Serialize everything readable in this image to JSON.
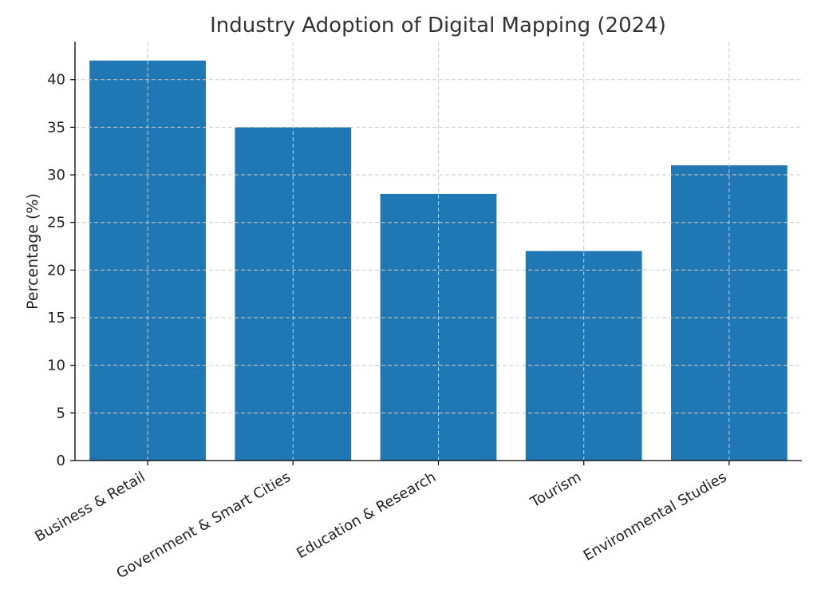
{
  "chart_data": {
    "type": "bar",
    "title": "Industry Adoption of Digital Mapping (2024)",
    "xlabel": "",
    "ylabel": "Percentage (%)",
    "categories": [
      "Business & Retail",
      "Government & Smart Cities",
      "Education & Research",
      "Tourism",
      "Environmental Studies"
    ],
    "values": [
      42,
      35,
      28,
      22,
      31
    ],
    "ylim": [
      0,
      44
    ],
    "yticks": [
      0,
      5,
      10,
      15,
      20,
      25,
      30,
      35,
      40
    ],
    "grid": true,
    "bar_color": "#1f77b4"
  }
}
